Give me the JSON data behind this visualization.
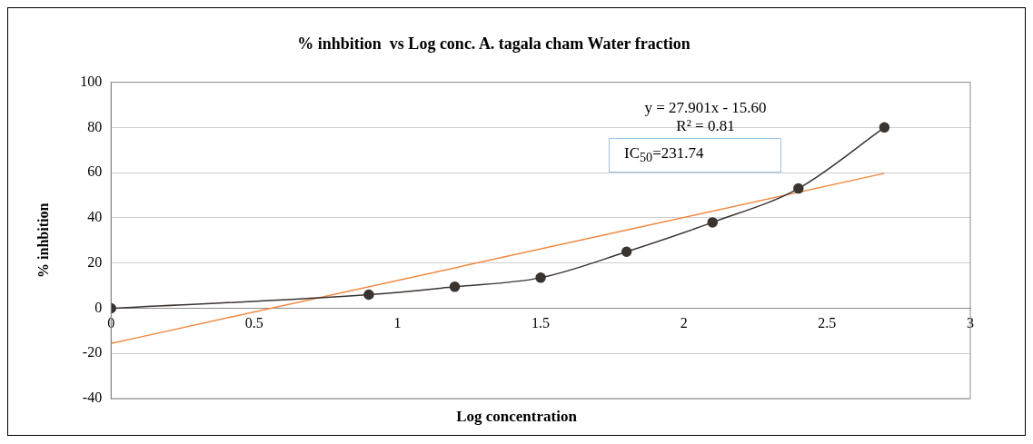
{
  "chart_data": {
    "type": "line",
    "title": "% inhbition  vs Log conc. A. tagala cham Water fraction",
    "xlabel": "Log concentration",
    "ylabel": "% inhbition",
    "xlim": [
      0,
      3
    ],
    "xticks": [
      0,
      0.5,
      1,
      1.5,
      2,
      2.5,
      3
    ],
    "ylim": [
      -40,
      100
    ],
    "yticks": [
      -40,
      -20,
      0,
      20,
      40,
      60,
      80,
      100
    ],
    "grid": "y",
    "marker": "circle",
    "annotations": [
      "y = 27.901x - 15.60",
      "R² = 0.81",
      "IC$_{50}$=231.74"
    ],
    "series": [
      {
        "x": [
          0,
          0.9,
          1.2,
          1.5,
          1.8,
          2.1,
          2.4,
          2.7
        ],
        "values": [
          0,
          6,
          9.5,
          13.5,
          25,
          38,
          53,
          80
        ],
        "color": "#3a3431"
      },
      {
        "type": "line",
        "x": [
          0,
          2.7
        ],
        "values": [
          -15.6,
          59.7
        ],
        "color": "#f0883e",
        "marker": "none"
      }
    ]
  }
}
